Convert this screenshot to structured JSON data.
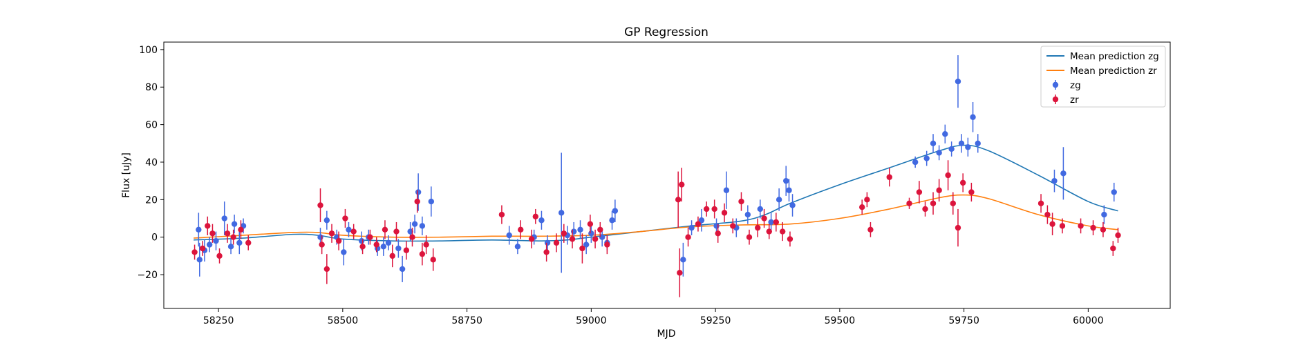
{
  "chart_data": {
    "type": "scatter",
    "title": "GP Regression",
    "xlabel": "MJD",
    "ylabel": "Flux [uJy]",
    "xlim": [
      58140,
      60165
    ],
    "ylim": [
      -38,
      104
    ],
    "xticks": [
      58250,
      58500,
      58750,
      59000,
      59250,
      59500,
      59750,
      60000
    ],
    "yticks": [
      -20,
      0,
      20,
      40,
      60,
      80,
      100
    ],
    "grid": false,
    "legend_position": "top-right",
    "legend": [
      "Mean prediction zg",
      "Mean prediction zr",
      "zg",
      "zr"
    ],
    "series": [
      {
        "name": "Mean prediction zg",
        "kind": "line",
        "color": "#1f77b4",
        "x": [
          58200,
          58300,
          58400,
          58450,
          58500,
          58600,
          58700,
          58800,
          58900,
          58950,
          59000,
          59100,
          59200,
          59300,
          59350,
          59400,
          59500,
          59600,
          59700,
          59750,
          59800,
          59900,
          60000,
          60060
        ],
        "y": [
          -1.5,
          -0.5,
          1.5,
          1.0,
          -1.0,
          -2.0,
          -2.0,
          -1.5,
          -2.0,
          -1.5,
          0.0,
          3.0,
          6.0,
          8.5,
          12.0,
          18.0,
          28.0,
          37.0,
          46.0,
          49.0,
          46.0,
          33.0,
          19.0,
          14.0
        ]
      },
      {
        "name": "Mean prediction zr",
        "kind": "line",
        "color": "#ff7f0e",
        "x": [
          58200,
          58300,
          58400,
          58450,
          58500,
          58600,
          58700,
          58800,
          58900,
          59000,
          59100,
          59200,
          59300,
          59400,
          59500,
          59600,
          59700,
          59750,
          59800,
          59900,
          60000,
          60060
        ],
        "y": [
          -0.5,
          1.0,
          2.5,
          2.5,
          1.0,
          0.0,
          0.0,
          0.5,
          0.5,
          1.0,
          3.0,
          5.5,
          6.5,
          7.0,
          10.0,
          15.0,
          21.0,
          22.5,
          20.5,
          12.0,
          6.0,
          4.0
        ]
      },
      {
        "name": "zg",
        "kind": "errorbar",
        "color": "#4169e1",
        "points": [
          [
            58210,
            4,
            9
          ],
          [
            58212,
            -12,
            9
          ],
          [
            58222,
            -7,
            6
          ],
          [
            58232,
            -4,
            4
          ],
          [
            58245,
            -2,
            5
          ],
          [
            58262,
            10,
            9
          ],
          [
            58275,
            -5,
            4
          ],
          [
            58282,
            7,
            5
          ],
          [
            58292,
            -3,
            6
          ],
          [
            58300,
            6,
            4
          ],
          [
            58455,
            0,
            5
          ],
          [
            58468,
            9,
            5
          ],
          [
            58488,
            0,
            4
          ],
          [
            58502,
            -8,
            7
          ],
          [
            58512,
            4,
            4
          ],
          [
            58538,
            -2,
            5
          ],
          [
            58552,
            0,
            4
          ],
          [
            58570,
            -6,
            4
          ],
          [
            58582,
            -5,
            5
          ],
          [
            58592,
            -3,
            4
          ],
          [
            58612,
            -6,
            5
          ],
          [
            58620,
            -17,
            7
          ],
          [
            58636,
            3,
            5
          ],
          [
            58645,
            7,
            5
          ],
          [
            58652,
            24,
            10
          ],
          [
            58660,
            6,
            5
          ],
          [
            58678,
            19,
            8
          ],
          [
            58835,
            1,
            5
          ],
          [
            58852,
            -5,
            4
          ],
          [
            58885,
            0,
            4
          ],
          [
            58900,
            9,
            5
          ],
          [
            58912,
            -3,
            4
          ],
          [
            58940,
            13,
            32
          ],
          [
            58952,
            1,
            5
          ],
          [
            58965,
            3,
            5
          ],
          [
            58978,
            4,
            5
          ],
          [
            58990,
            -4,
            5
          ],
          [
            59000,
            2,
            5
          ],
          [
            59022,
            0,
            5
          ],
          [
            59032,
            -3,
            4
          ],
          [
            59042,
            9,
            5
          ],
          [
            59048,
            14,
            6
          ],
          [
            59185,
            -12,
            9
          ],
          [
            59202,
            5,
            4
          ],
          [
            59222,
            9,
            6
          ],
          [
            59252,
            6,
            4
          ],
          [
            59272,
            25,
            10
          ],
          [
            59292,
            5,
            5
          ],
          [
            59315,
            12,
            5
          ],
          [
            59340,
            15,
            5
          ],
          [
            59362,
            8,
            5
          ],
          [
            59378,
            20,
            6
          ],
          [
            59392,
            30,
            8
          ],
          [
            59398,
            25,
            6
          ],
          [
            59405,
            17,
            6
          ],
          [
            59652,
            40,
            3
          ],
          [
            59675,
            42,
            4
          ],
          [
            59688,
            50,
            5
          ],
          [
            59700,
            45,
            4
          ],
          [
            59712,
            55,
            5
          ],
          [
            59725,
            47,
            4
          ],
          [
            59738,
            83,
            14
          ],
          [
            59745,
            50,
            5
          ],
          [
            59758,
            48,
            5
          ],
          [
            59768,
            64,
            8
          ],
          [
            59778,
            50,
            5
          ],
          [
            59932,
            30,
            6
          ],
          [
            59950,
            34,
            14
          ],
          [
            60032,
            12,
            5
          ],
          [
            60052,
            24,
            5
          ]
        ]
      },
      {
        "name": "zr",
        "kind": "errorbar",
        "color": "#dc143c",
        "points": [
          [
            58202,
            -8,
            4
          ],
          [
            58218,
            -6,
            4
          ],
          [
            58228,
            6,
            5
          ],
          [
            58238,
            2,
            5
          ],
          [
            58252,
            -10,
            4
          ],
          [
            58268,
            2,
            5
          ],
          [
            58280,
            0,
            4
          ],
          [
            58295,
            4,
            5
          ],
          [
            58310,
            -3,
            4
          ],
          [
            58455,
            17,
            9
          ],
          [
            58458,
            -4,
            5
          ],
          [
            58468,
            -17,
            8
          ],
          [
            58478,
            2,
            5
          ],
          [
            58492,
            -2,
            5
          ],
          [
            58505,
            10,
            5
          ],
          [
            58522,
            3,
            4
          ],
          [
            58540,
            -5,
            4
          ],
          [
            58555,
            0,
            4
          ],
          [
            58568,
            -4,
            4
          ],
          [
            58585,
            4,
            5
          ],
          [
            58600,
            -10,
            6
          ],
          [
            58608,
            3,
            5
          ],
          [
            58628,
            -7,
            5
          ],
          [
            58640,
            0,
            5
          ],
          [
            58650,
            19,
            6
          ],
          [
            58660,
            -9,
            6
          ],
          [
            58668,
            -4,
            5
          ],
          [
            58682,
            -12,
            6
          ],
          [
            58820,
            12,
            5
          ],
          [
            58858,
            4,
            5
          ],
          [
            58880,
            -1,
            5
          ],
          [
            58888,
            11,
            4
          ],
          [
            58910,
            -8,
            5
          ],
          [
            58930,
            -3,
            5
          ],
          [
            58945,
            2,
            5
          ],
          [
            58962,
            -1,
            5
          ],
          [
            58982,
            -6,
            8
          ],
          [
            58998,
            7,
            5
          ],
          [
            59008,
            -1,
            5
          ],
          [
            59018,
            4,
            4
          ],
          [
            59032,
            -4,
            5
          ],
          [
            59175,
            20,
            15
          ],
          [
            59178,
            -19,
            13
          ],
          [
            59182,
            28,
            9
          ],
          [
            59195,
            0,
            5
          ],
          [
            59215,
            7,
            4
          ],
          [
            59232,
            15,
            4
          ],
          [
            59248,
            15,
            5
          ],
          [
            59255,
            2,
            5
          ],
          [
            59268,
            13,
            5
          ],
          [
            59285,
            6,
            4
          ],
          [
            59302,
            19,
            5
          ],
          [
            59318,
            0,
            4
          ],
          [
            59335,
            5,
            5
          ],
          [
            59348,
            10,
            5
          ],
          [
            59358,
            3,
            4
          ],
          [
            59372,
            8,
            5
          ],
          [
            59385,
            3,
            5
          ],
          [
            59400,
            -1,
            4
          ],
          [
            59545,
            16,
            4
          ],
          [
            59555,
            20,
            4
          ],
          [
            59562,
            4,
            4
          ],
          [
            59600,
            32,
            5
          ],
          [
            59640,
            18,
            3
          ],
          [
            59660,
            24,
            6
          ],
          [
            59672,
            15,
            4
          ],
          [
            59688,
            18,
            6
          ],
          [
            59700,
            25,
            6
          ],
          [
            59718,
            33,
            8
          ],
          [
            59728,
            18,
            6
          ],
          [
            59738,
            5,
            10
          ],
          [
            59748,
            29,
            5
          ],
          [
            59765,
            24,
            5
          ],
          [
            59905,
            18,
            5
          ],
          [
            59918,
            12,
            5
          ],
          [
            59928,
            7,
            6
          ],
          [
            59948,
            6,
            4
          ],
          [
            59985,
            6,
            4
          ],
          [
            60010,
            5,
            4
          ],
          [
            60030,
            4,
            4
          ],
          [
            60050,
            -6,
            4
          ],
          [
            60060,
            1,
            4
          ]
        ]
      }
    ]
  }
}
